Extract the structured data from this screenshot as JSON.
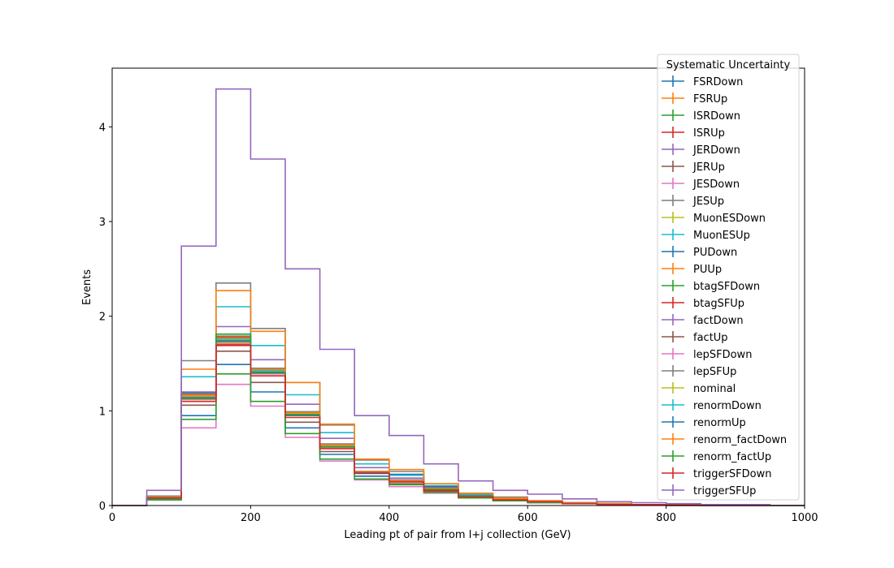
{
  "chart_data": {
    "type": "histogram",
    "xlabel": "Leading pt of pair from l+j collection (GeV)",
    "ylabel": "Events",
    "xlim": [
      0,
      1000
    ],
    "ylim": [
      0,
      4.62
    ],
    "xticks": [
      0,
      200,
      400,
      600,
      800,
      1000
    ],
    "yticks": [
      0,
      1,
      2,
      3,
      4
    ],
    "grid": false,
    "legend": {
      "title": "Systematic Uncertainty",
      "placement": "top-right"
    },
    "bin_edges": [
      0,
      50,
      100,
      150,
      200,
      250,
      300,
      350,
      400,
      450,
      500,
      550,
      600,
      650,
      700,
      750,
      800,
      850,
      900,
      950,
      1000
    ],
    "series": [
      {
        "name": "FSRDown",
        "color": "#1f77b4",
        "values": [
          0,
          0.07,
          1.19,
          1.75,
          1.42,
          0.98,
          0.63,
          0.35,
          0.26,
          0.17,
          0.1,
          0.07,
          0.04,
          0.02,
          0.01,
          0.01,
          0.01,
          0,
          0,
          0
        ]
      },
      {
        "name": "FSRUp",
        "color": "#ff7f0e",
        "values": [
          0,
          0.08,
          1.17,
          1.77,
          1.44,
          0.99,
          0.64,
          0.36,
          0.27,
          0.18,
          0.1,
          0.07,
          0.04,
          0.02,
          0.01,
          0.01,
          0.01,
          0,
          0,
          0
        ]
      },
      {
        "name": "ISRDown",
        "color": "#2ca02c",
        "values": [
          0,
          0.07,
          1.13,
          1.73,
          1.4,
          0.95,
          0.61,
          0.34,
          0.25,
          0.16,
          0.09,
          0.06,
          0.04,
          0.02,
          0.01,
          0.01,
          0.01,
          0,
          0,
          0
        ]
      },
      {
        "name": "ISRUp",
        "color": "#d62728",
        "values": [
          0,
          0.08,
          1.18,
          1.78,
          1.45,
          0.99,
          0.65,
          0.36,
          0.27,
          0.18,
          0.11,
          0.07,
          0.04,
          0.02,
          0.01,
          0.01,
          0.01,
          0,
          0,
          0
        ]
      },
      {
        "name": "JERDown",
        "color": "#9467bd",
        "values": [
          0,
          0.08,
          1.2,
          1.89,
          1.54,
          1.07,
          0.71,
          0.4,
          0.29,
          0.19,
          0.11,
          0.07,
          0.04,
          0.03,
          0.02,
          0.01,
          0.01,
          0,
          0,
          0
        ]
      },
      {
        "name": "JERUp",
        "color": "#8c564b",
        "values": [
          0,
          0.07,
          1.06,
          1.63,
          1.3,
          0.88,
          0.57,
          0.31,
          0.23,
          0.15,
          0.09,
          0.06,
          0.03,
          0.02,
          0.01,
          0.01,
          0.01,
          0,
          0,
          0
        ]
      },
      {
        "name": "JESDown",
        "color": "#e377c2",
        "values": [
          0,
          0.06,
          0.82,
          1.28,
          1.05,
          0.72,
          0.47,
          0.27,
          0.2,
          0.13,
          0.08,
          0.05,
          0.03,
          0.02,
          0.01,
          0.01,
          0,
          0,
          0,
          0
        ]
      },
      {
        "name": "JESUp",
        "color": "#7f7f7f",
        "values": [
          0,
          0.1,
          1.53,
          2.35,
          1.87,
          1.3,
          0.85,
          0.48,
          0.36,
          0.23,
          0.13,
          0.09,
          0.05,
          0.03,
          0.02,
          0.01,
          0.01,
          0,
          0,
          0
        ]
      },
      {
        "name": "MuonESDown",
        "color": "#bcbd22",
        "values": [
          0,
          0.07,
          1.12,
          1.72,
          1.4,
          0.96,
          0.62,
          0.35,
          0.26,
          0.17,
          0.1,
          0.06,
          0.04,
          0.02,
          0.01,
          0.01,
          0.01,
          0,
          0,
          0
        ]
      },
      {
        "name": "MuonESUp",
        "color": "#17becf",
        "values": [
          0,
          0.09,
          1.36,
          2.1,
          1.69,
          1.17,
          0.77,
          0.44,
          0.32,
          0.21,
          0.12,
          0.08,
          0.05,
          0.03,
          0.02,
          0.01,
          0.01,
          0,
          0,
          0
        ]
      },
      {
        "name": "PUDown",
        "color": "#1f77b4",
        "values": [
          0,
          0.06,
          0.95,
          1.49,
          1.2,
          0.82,
          0.54,
          0.31,
          0.33,
          0.2,
          0.09,
          0.06,
          0.03,
          0.02,
          0.01,
          0.01,
          0.01,
          0,
          0,
          0
        ]
      },
      {
        "name": "PUUp",
        "color": "#ff7f0e",
        "values": [
          0,
          0.09,
          1.44,
          2.27,
          1.84,
          1.3,
          0.86,
          0.49,
          0.38,
          0.23,
          0.13,
          0.08,
          0.05,
          0.03,
          0.02,
          0.01,
          0.01,
          0,
          0,
          0
        ]
      },
      {
        "name": "btagSFDown",
        "color": "#2ca02c",
        "values": [
          0,
          0.06,
          0.91,
          1.39,
          1.1,
          0.76,
          0.49,
          0.28,
          0.22,
          0.14,
          0.08,
          0.05,
          0.03,
          0.02,
          0.01,
          0.01,
          0,
          0,
          0,
          0
        ]
      },
      {
        "name": "btagSFUp",
        "color": "#d62728",
        "values": [
          0,
          0.08,
          1.16,
          1.7,
          1.41,
          0.96,
          0.63,
          0.35,
          0.26,
          0.17,
          0.1,
          0.06,
          0.04,
          0.02,
          0.01,
          0.01,
          0.01,
          0,
          0,
          0
        ]
      },
      {
        "name": "factDown",
        "color": "#9467bd",
        "values": [
          0,
          0.08,
          1.15,
          1.76,
          1.43,
          0.97,
          0.64,
          0.35,
          0.26,
          0.17,
          0.1,
          0.07,
          0.04,
          0.02,
          0.01,
          0.01,
          0.01,
          0,
          0,
          0
        ]
      },
      {
        "name": "factUp",
        "color": "#8c564b",
        "values": [
          0,
          0.07,
          1.14,
          1.74,
          1.41,
          0.96,
          0.62,
          0.35,
          0.26,
          0.17,
          0.1,
          0.06,
          0.04,
          0.02,
          0.01,
          0.01,
          0.01,
          0,
          0,
          0
        ]
      },
      {
        "name": "lepSFDown",
        "color": "#e377c2",
        "values": [
          0,
          0.07,
          1.12,
          1.71,
          1.39,
          0.95,
          0.61,
          0.34,
          0.25,
          0.17,
          0.1,
          0.06,
          0.04,
          0.02,
          0.01,
          0.01,
          0.01,
          0,
          0,
          0
        ]
      },
      {
        "name": "lepSFUp",
        "color": "#7f7f7f",
        "values": [
          0,
          0.08,
          1.18,
          1.79,
          1.45,
          0.99,
          0.65,
          0.36,
          0.27,
          0.18,
          0.1,
          0.07,
          0.04,
          0.02,
          0.01,
          0.01,
          0.01,
          0,
          0,
          0
        ]
      },
      {
        "name": "nominal",
        "color": "#bcbd22",
        "values": [
          0,
          0.08,
          1.15,
          1.75,
          1.42,
          0.97,
          0.63,
          0.35,
          0.26,
          0.17,
          0.1,
          0.07,
          0.04,
          0.02,
          0.01,
          0.01,
          0.01,
          0,
          0,
          0
        ]
      },
      {
        "name": "renormDown",
        "color": "#17becf",
        "values": [
          0,
          0.08,
          1.16,
          1.76,
          1.43,
          0.98,
          0.64,
          0.36,
          0.26,
          0.17,
          0.1,
          0.07,
          0.04,
          0.02,
          0.01,
          0.01,
          0.01,
          0,
          0,
          0
        ]
      },
      {
        "name": "renormUp",
        "color": "#1f77b4",
        "values": [
          0,
          0.07,
          1.14,
          1.74,
          1.41,
          0.96,
          0.62,
          0.35,
          0.26,
          0.17,
          0.1,
          0.06,
          0.04,
          0.02,
          0.01,
          0.01,
          0.01,
          0,
          0,
          0
        ]
      },
      {
        "name": "renorm_factDown",
        "color": "#ff7f0e",
        "values": [
          0,
          0.08,
          1.16,
          1.77,
          1.44,
          0.98,
          0.64,
          0.36,
          0.26,
          0.18,
          0.1,
          0.07,
          0.04,
          0.02,
          0.01,
          0.01,
          0.01,
          0,
          0,
          0
        ]
      },
      {
        "name": "renorm_factUp",
        "color": "#2ca02c",
        "values": [
          0,
          0.07,
          1.13,
          1.81,
          1.4,
          0.95,
          0.62,
          0.34,
          0.25,
          0.17,
          0.1,
          0.06,
          0.04,
          0.02,
          0.01,
          0.01,
          0.01,
          0,
          0,
          0
        ]
      },
      {
        "name": "triggerSFDown",
        "color": "#d62728",
        "values": [
          0,
          0.08,
          1.1,
          1.69,
          1.37,
          0.93,
          0.6,
          0.34,
          0.25,
          0.16,
          0.09,
          0.06,
          0.04,
          0.02,
          0.01,
          0.01,
          0.01,
          0,
          0,
          0
        ]
      },
      {
        "name": "triggerSFUp",
        "color": "#9467bd",
        "values": [
          0,
          0.16,
          2.74,
          4.4,
          3.66,
          2.5,
          1.65,
          0.95,
          0.74,
          0.44,
          0.26,
          0.16,
          0.12,
          0.07,
          0.04,
          0.03,
          0.02,
          0.01,
          0.01,
          0
        ]
      }
    ]
  }
}
